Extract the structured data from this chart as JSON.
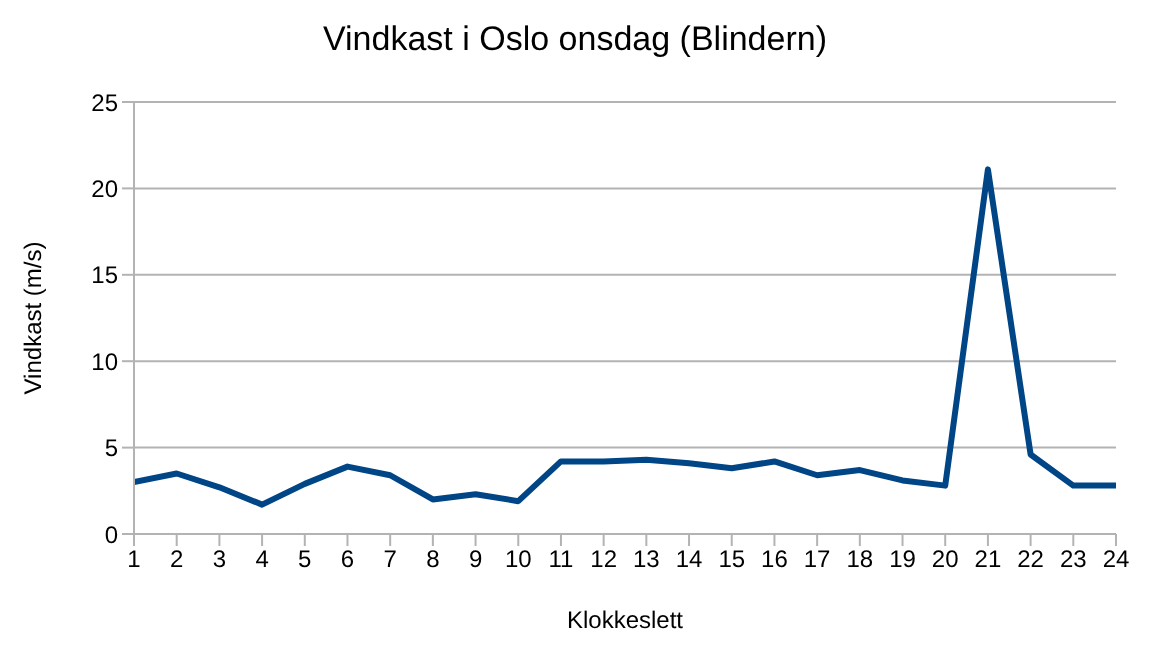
{
  "chart_data": {
    "type": "line",
    "title": "Vindkast i Oslo onsdag (Blindern)",
    "xlabel": "Klokkeslett",
    "ylabel": "Vindkast (m/s)",
    "x": [
      1,
      2,
      3,
      4,
      5,
      6,
      7,
      8,
      9,
      10,
      11,
      12,
      13,
      14,
      15,
      16,
      17,
      18,
      19,
      20,
      21,
      22,
      23,
      24
    ],
    "series": [
      {
        "color": "#004586",
        "values": [
          3.0,
          3.5,
          2.7,
          1.7,
          2.9,
          3.9,
          3.4,
          2.0,
          2.3,
          1.9,
          4.2,
          4.2,
          4.3,
          4.1,
          3.8,
          4.2,
          3.4,
          3.7,
          3.1,
          2.8,
          21.1,
          4.6,
          2.8,
          2.8
        ]
      }
    ],
    "xlim": [
      1,
      24
    ],
    "xticks": [
      1,
      2,
      3,
      4,
      5,
      6,
      7,
      8,
      9,
      10,
      11,
      12,
      13,
      14,
      15,
      16,
      17,
      18,
      19,
      20,
      21,
      22,
      23,
      24
    ],
    "ylim": [
      0,
      25
    ],
    "yticks": [
      0,
      5,
      10,
      15,
      20,
      25
    ],
    "grid": "y",
    "legend": false,
    "marker": "none",
    "line_style": "solid"
  }
}
